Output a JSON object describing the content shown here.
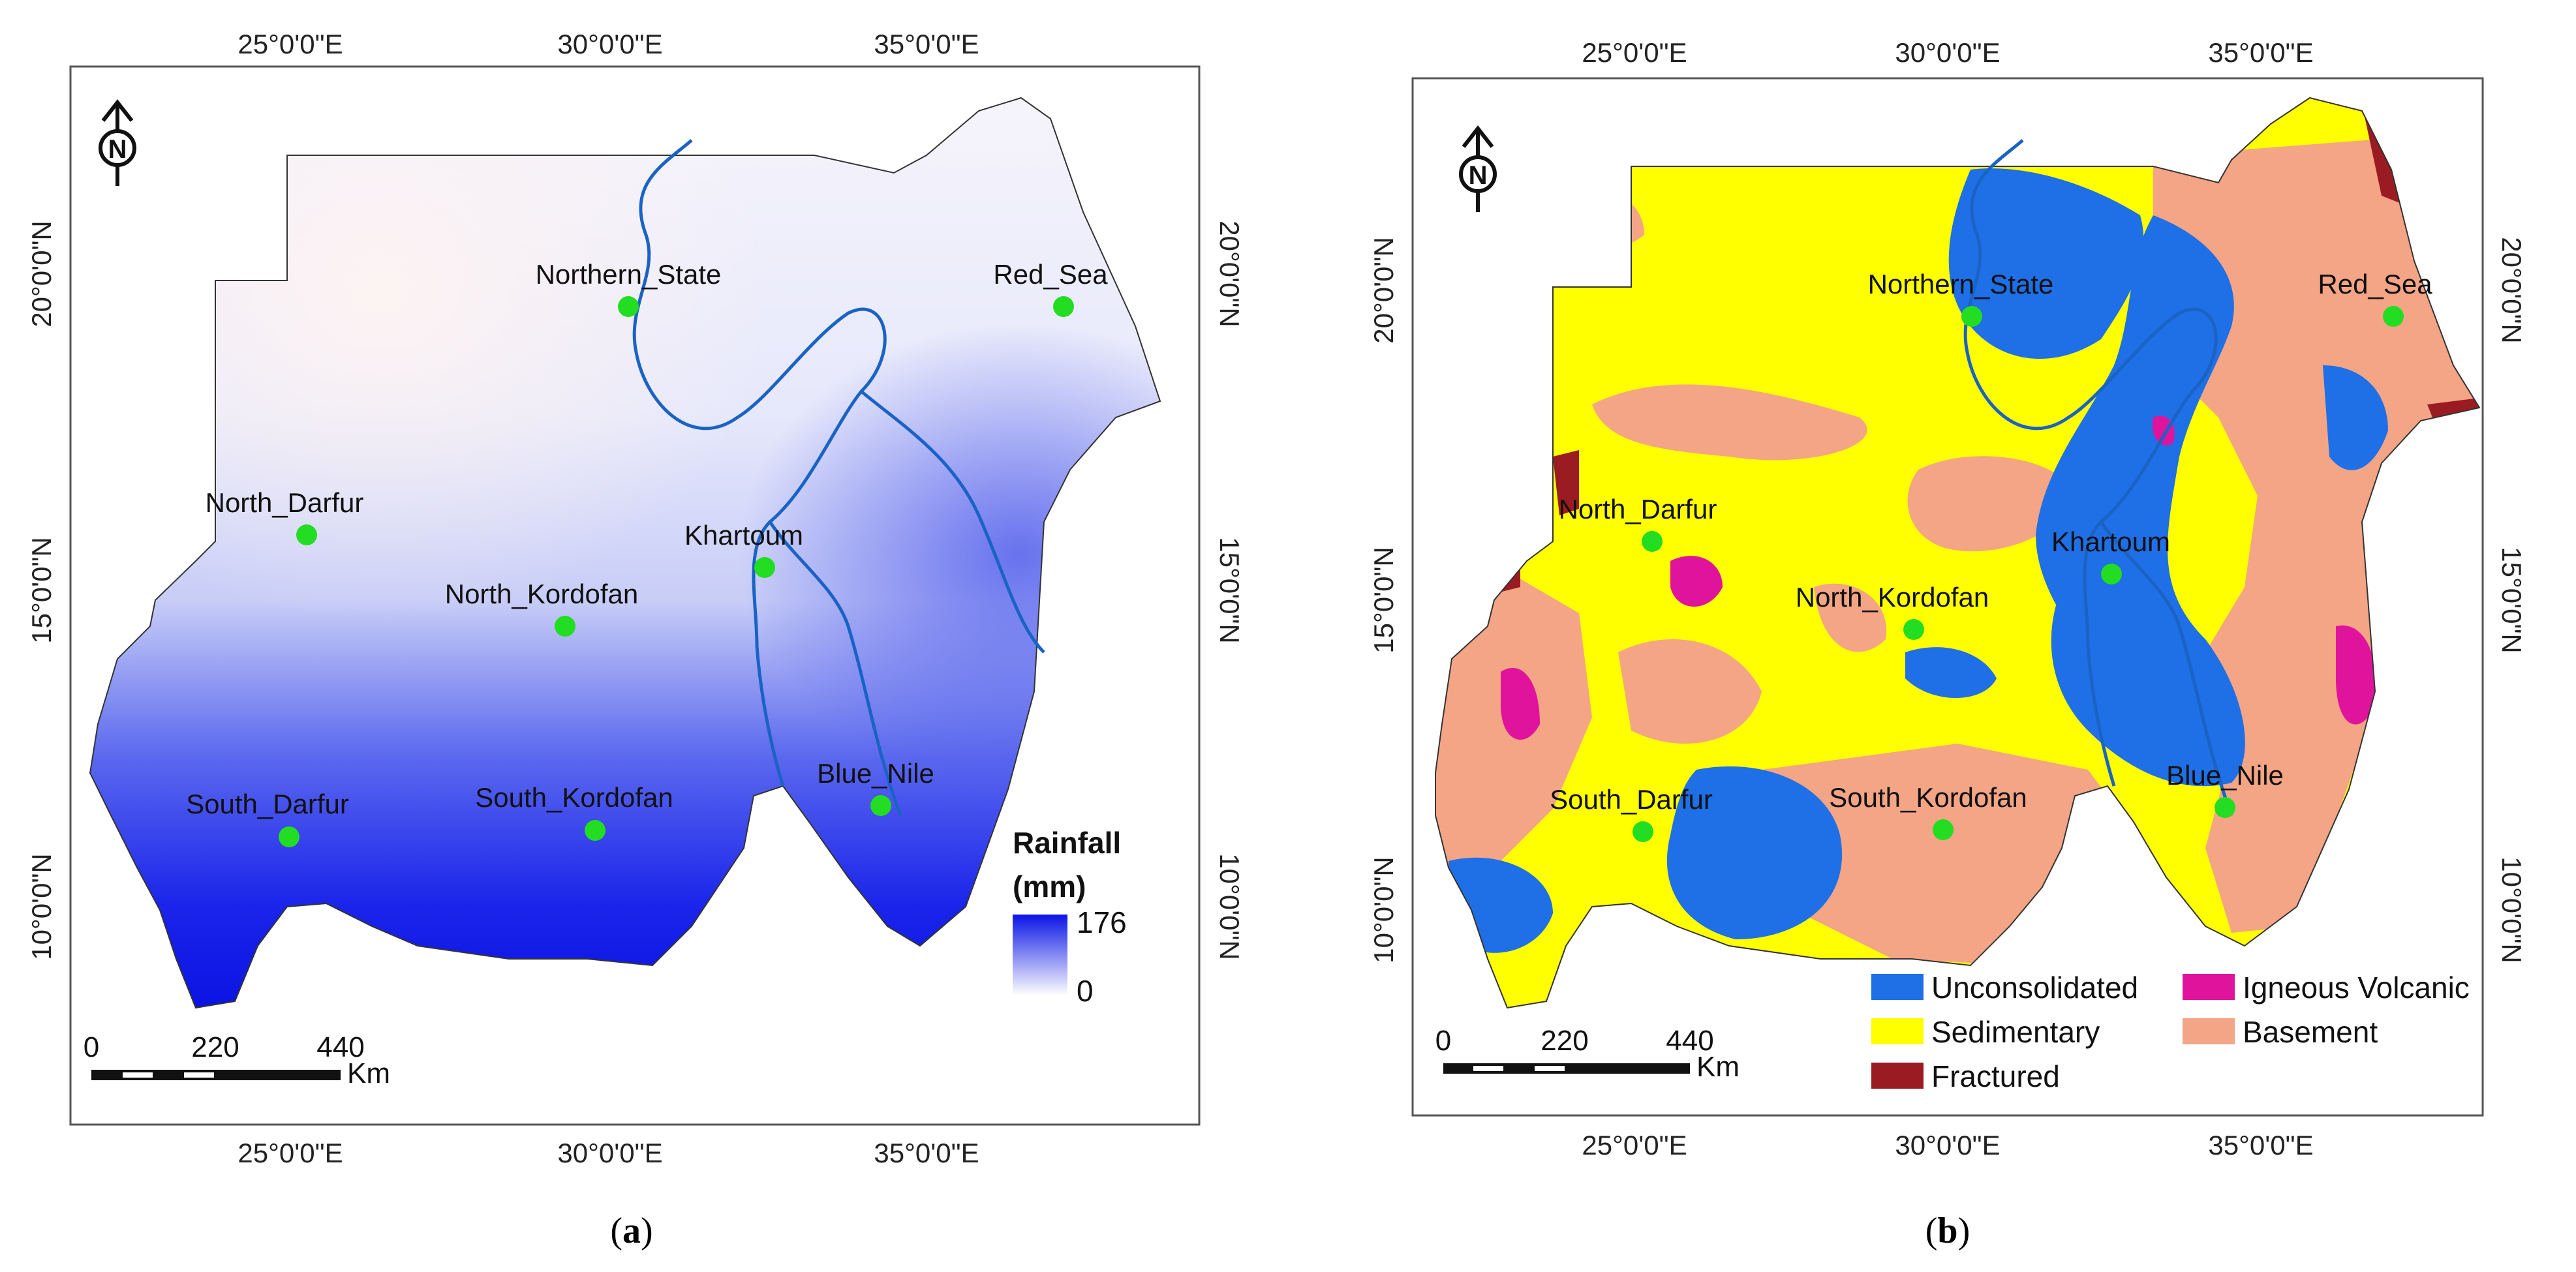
{
  "panel_a": {
    "caption_open": "(",
    "caption_letter": "a",
    "caption_close": ")",
    "lon_ticks": [
      "25°0'0\"E",
      "30°0'0\"E",
      "35°0'0\"E"
    ],
    "lat_ticks": [
      "20°0'0\"N",
      "15°0'0\"N",
      "10°0'0\"N"
    ],
    "north_arrow": "N",
    "legend": {
      "title_1": "Rainfall",
      "title_2": "(mm)",
      "max": "176",
      "min": "0",
      "color_high": "#0a14e6",
      "color_low": "#ffffff"
    },
    "scale_bar": {
      "l0": "0",
      "l1": "220",
      "l2": "440",
      "unit": "Km"
    },
    "places": [
      {
        "name": "Northern_State"
      },
      {
        "name": "Red_Sea"
      },
      {
        "name": "North_Darfur"
      },
      {
        "name": "Khartoum"
      },
      {
        "name": "North_Kordofan"
      },
      {
        "name": "Blue_Nile"
      },
      {
        "name": "South_Darfur"
      },
      {
        "name": "South_Kordofan"
      }
    ]
  },
  "panel_b": {
    "caption_open": "(",
    "caption_letter": "b",
    "caption_close": ")",
    "lon_ticks": [
      "25°0'0\"E",
      "30°0'0\"E",
      "35°0'0\"E"
    ],
    "lat_ticks": [
      "20°0'0\"N",
      "15°0'0\"N",
      "10°0'0\"N"
    ],
    "north_arrow": "N",
    "legend": [
      {
        "label": "Unconsolidated",
        "color": "#1f6fe6"
      },
      {
        "label": "Igneous Volcanic",
        "color": "#e0149c"
      },
      {
        "label": "Sedimentary",
        "color": "#ffff00"
      },
      {
        "label": "Basement",
        "color": "#f3a585"
      },
      {
        "label": "Fractured",
        "color": "#9b1b22"
      }
    ],
    "scale_bar": {
      "l0": "0",
      "l1": "220",
      "l2": "440",
      "unit": "Km"
    },
    "places": [
      {
        "name": "Northern_State"
      },
      {
        "name": "Red_Sea"
      },
      {
        "name": "North_Darfur"
      },
      {
        "name": "Khartoum"
      },
      {
        "name": "North_Kordofan"
      },
      {
        "name": "Blue_Nile"
      },
      {
        "name": "South_Darfur"
      },
      {
        "name": "South_Kordofan"
      }
    ]
  },
  "colors": {
    "nile": "#1a63c4",
    "city_marker": "#22dd22",
    "frame": "#444444"
  }
}
